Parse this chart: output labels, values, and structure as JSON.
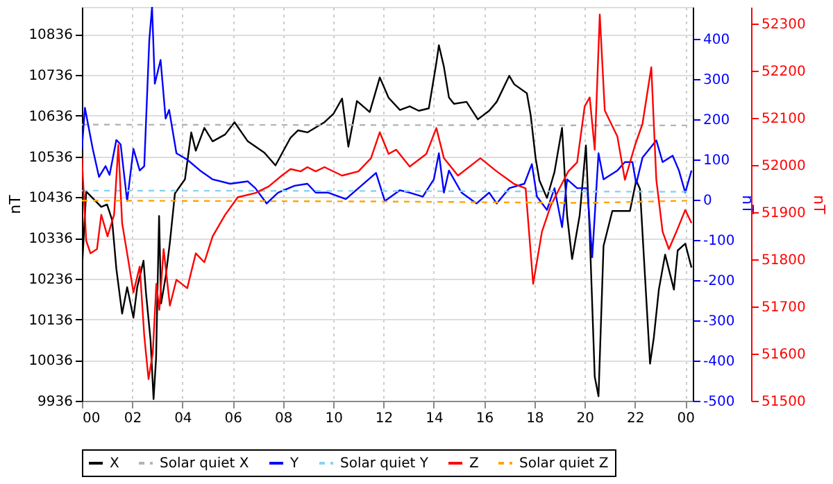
{
  "chart_data": {
    "type": "line",
    "xlabel": null,
    "ylabel": "nT",
    "y2label": "nT",
    "y3label": "nT",
    "xlim": [
      0,
      24.3
    ],
    "xticks": [
      {
        "value": 0,
        "label": "00"
      },
      {
        "value": 2,
        "label": "02"
      },
      {
        "value": 4,
        "label": "04"
      },
      {
        "value": 6,
        "label": "06"
      },
      {
        "value": 8,
        "label": "08"
      },
      {
        "value": 10,
        "label": "10"
      },
      {
        "value": 12,
        "label": "12"
      },
      {
        "value": 14,
        "label": "14"
      },
      {
        "value": 16,
        "label": "16"
      },
      {
        "value": 18,
        "label": "18"
      },
      {
        "value": 20,
        "label": "20"
      },
      {
        "value": 22,
        "label": "22"
      },
      {
        "value": 24,
        "label": "00"
      }
    ],
    "ylim": [
      9936,
      10903
    ],
    "yticks": [
      9936,
      10036,
      10136,
      10236,
      10336,
      10436,
      10536,
      10636,
      10736,
      10836
    ],
    "y2lim": [
      -500,
      480
    ],
    "y2ticks": [
      -500,
      -400,
      -300,
      -200,
      -100,
      0,
      100,
      200,
      300,
      400
    ],
    "y3lim": [
      51500,
      52336
    ],
    "y3ticks": [
      51500,
      51600,
      51700,
      51800,
      51900,
      52000,
      52100,
      52200,
      52300
    ],
    "grid": true,
    "legend": "bottom",
    "series": [
      {
        "name": "X",
        "color": "#000000",
        "line_style": "solid",
        "x": [
          0,
          0.17,
          0.77,
          1.0,
          1.2,
          1.37,
          1.6,
          1.8,
          2.05,
          2.2,
          2.45,
          2.55,
          2.73,
          2.85,
          2.95,
          3.07,
          3.15,
          3.33,
          3.5,
          3.7,
          4.1,
          4.35,
          4.53,
          4.87,
          5.2,
          5.7,
          6.07,
          6.6,
          7.26,
          7.7,
          8.3,
          8.6,
          8.97,
          9.65,
          10,
          10.35,
          10.6,
          10.94,
          11.45,
          11.85,
          12.2,
          12.65,
          13.04,
          13.4,
          13.8,
          14.1,
          14.2,
          14.4,
          14.6,
          14.8,
          15.3,
          15.75,
          16.2,
          16.5,
          17,
          17.2,
          17.7,
          17.85,
          18.05,
          18.2,
          18.5,
          18.8,
          19.1,
          19.3,
          19.5,
          19.8,
          20.05,
          20.2,
          20.4,
          20.55,
          20.75,
          21.1,
          21.45,
          21.8,
          22.05,
          22.2,
          22.4,
          22.6,
          22.75,
          22.95,
          23.2,
          23.55,
          23.7,
          24,
          24.25
        ],
        "values": [
          10256,
          10450,
          10412,
          10418,
          10380,
          10260,
          10150,
          10215,
          10140,
          10215,
          10280,
          10200,
          10085,
          9940,
          10040,
          10390,
          10175,
          10240,
          10325,
          10445,
          10480,
          10595,
          10550,
          10606,
          10573,
          10590,
          10620,
          10573,
          10545,
          10514,
          10582,
          10600,
          10595,
          10620,
          10640,
          10678,
          10560,
          10672,
          10645,
          10730,
          10680,
          10650,
          10659,
          10648,
          10654,
          10766,
          10809,
          10756,
          10681,
          10665,
          10670,
          10627,
          10648,
          10670,
          10734,
          10713,
          10691,
          10638,
          10531,
          10477,
          10434,
          10498,
          10606,
          10391,
          10284,
          10391,
          10563,
          10348,
          9995,
          9947,
          10316,
          10402,
          10402,
          10402,
          10477,
          10456,
          10241,
          10027,
          10091,
          10209,
          10295,
          10209,
          10305,
          10322,
          10263
        ]
      },
      {
        "name": "Solar quiet X",
        "color": "#b4b4b4",
        "line_style": "dashed",
        "x": [
          0,
          12,
          24.3
        ],
        "values": [
          10614,
          10613,
          10612
        ]
      },
      {
        "name": "Y",
        "color": "#0000ff",
        "line_style": "solid",
        "axis": "y2",
        "x": [
          0,
          0.12,
          0.43,
          0.68,
          0.94,
          1.1,
          1.37,
          1.54,
          1.8,
          2.05,
          2.3,
          2.48,
          2.68,
          2.79,
          2.9,
          3.13,
          3.33,
          3.47,
          3.76,
          4.19,
          4.7,
          5.2,
          5.9,
          6.6,
          6.9,
          7.35,
          7.8,
          8.46,
          8.97,
          9.3,
          9.8,
          10.5,
          11.0,
          11.7,
          12.05,
          12.65,
          13.04,
          13.56,
          14,
          14.2,
          14.4,
          14.6,
          15.1,
          15.7,
          16.2,
          16.5,
          17,
          17.6,
          17.9,
          18.1,
          18.5,
          18.8,
          19.1,
          19.3,
          19.7,
          20.1,
          20.3,
          20.55,
          20.75,
          21.3,
          21.6,
          21.9,
          22.05,
          22.3,
          22.85,
          23.1,
          23.5,
          23.75,
          24,
          24.25
        ],
        "values": [
          127,
          229,
          127,
          57,
          84,
          62,
          149,
          138,
          -3,
          127,
          73,
          84,
          397,
          480,
          289,
          348,
          202,
          224,
          116,
          100,
          73,
          51,
          40,
          46,
          29,
          -9,
          18,
          35,
          40,
          18,
          18,
          2,
          29,
          67,
          -3,
          24,
          18,
          8,
          51,
          116,
          18,
          73,
          18,
          -9,
          18,
          -9,
          29,
          40,
          89,
          8,
          -25,
          29,
          -68,
          51,
          29,
          29,
          -143,
          116,
          51,
          73,
          94,
          94,
          40,
          105,
          148,
          94,
          110,
          73,
          18,
          73
        ]
      },
      {
        "name": "Solar quiet Y",
        "color": "#87d3f0",
        "line_style": "dashed",
        "axis": "y2",
        "x": [
          0,
          12,
          24.3
        ],
        "values": [
          23,
          22,
          20
        ]
      },
      {
        "name": "Z",
        "color": "#ff0000",
        "line_style": "solid",
        "axis": "y3",
        "x": [
          0,
          0.17,
          0.34,
          0.6,
          0.77,
          1.02,
          1.28,
          1.45,
          1.6,
          1.83,
          2.05,
          2.3,
          2.48,
          2.65,
          2.82,
          2.96,
          3.08,
          3.25,
          3.5,
          3.76,
          4.19,
          4.53,
          4.87,
          5.2,
          5.7,
          6.2,
          6.9,
          7.43,
          7.95,
          8.3,
          8.7,
          8.97,
          9.3,
          9.65,
          10.35,
          11.0,
          11.5,
          11.85,
          12.2,
          12.5,
          13.04,
          13.7,
          14.1,
          14.4,
          14.96,
          15.85,
          16.5,
          17.2,
          17.65,
          17.95,
          18.3,
          18.65,
          19.0,
          19.35,
          19.7,
          20.0,
          20.2,
          20.4,
          20.6,
          20.8,
          21.3,
          21.6,
          22,
          22.3,
          22.65,
          22.85,
          23.1,
          23.35,
          23.65,
          24,
          24.25
        ],
        "values": [
          52015,
          51840,
          51813,
          51822,
          51895,
          51849,
          51895,
          52043,
          51877,
          51803,
          51730,
          51785,
          51638,
          51546,
          51601,
          51748,
          51693,
          51822,
          51702,
          51757,
          51739,
          51813,
          51794,
          51849,
          51895,
          51932,
          51941,
          51955,
          51978,
          51992,
          51987,
          51996,
          51987,
          51996,
          51978,
          51987,
          52015,
          52070,
          52024,
          52033,
          51997,
          52024,
          52079,
          52015,
          51978,
          52015,
          51987,
          51960,
          51951,
          51748,
          51859,
          51914,
          51951,
          51987,
          52006,
          52125,
          52144,
          52033,
          52320,
          52116,
          52061,
          51969,
          52042,
          52088,
          52208,
          51969,
          51859,
          51822,
          51859,
          51905,
          51877
        ]
      },
      {
        "name": "Solar quiet Z",
        "color": "#ffa500",
        "line_style": "dashed",
        "axis": "y3",
        "x": [
          0,
          12,
          20,
          24.3
        ],
        "values": [
          51925,
          51923,
          51920,
          51925
        ]
      }
    ]
  }
}
